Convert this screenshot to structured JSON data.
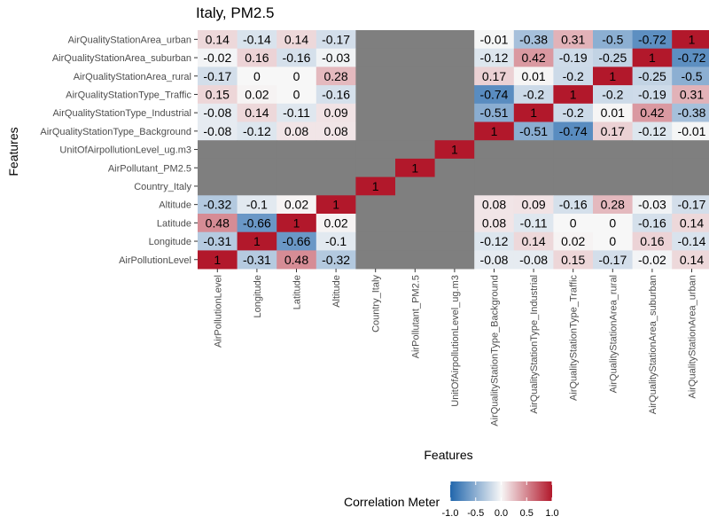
{
  "chart_data": {
    "type": "heatmap",
    "title": "Italy, PM2.5",
    "xlabel": "Features",
    "ylabel": "Features",
    "x_categories": [
      "AirPollutionLevel",
      "Longitude",
      "Latitude",
      "Altitude",
      "Country_Italy",
      "AirPollutant_PM2.5",
      "UnitOfAirpollutionLevel_ug.m3",
      "AirQualityStationType_Background",
      "AirQualityStationType_Industrial",
      "AirQualityStationType_Traffic",
      "AirQualityStationArea_rural",
      "AirQualityStationArea_suburban",
      "AirQualityStationArea_urban"
    ],
    "y_categories": [
      "AirQualityStationArea_urban",
      "AirQualityStationArea_suburban",
      "AirQualityStationArea_rural",
      "AirQualityStationType_Traffic",
      "AirQualityStationType_Industrial",
      "AirQualityStationType_Background",
      "UnitOfAirpollutionLevel_ug.m3",
      "AirPollutant_PM2.5",
      "Country_Italy",
      "Altitude",
      "Latitude",
      "Longitude",
      "AirPollutionLevel"
    ],
    "values": [
      [
        0.14,
        -0.14,
        0.14,
        -0.17,
        null,
        null,
        null,
        -0.01,
        -0.38,
        0.31,
        -0.5,
        -0.72,
        1
      ],
      [
        -0.02,
        0.16,
        -0.16,
        -0.03,
        null,
        null,
        null,
        -0.12,
        0.42,
        -0.19,
        -0.25,
        1,
        -0.72
      ],
      [
        -0.17,
        0,
        0,
        0.28,
        null,
        null,
        null,
        0.17,
        0.01,
        -0.2,
        1,
        -0.25,
        -0.5
      ],
      [
        0.15,
        0.02,
        0,
        -0.16,
        null,
        null,
        null,
        -0.74,
        -0.2,
        1,
        -0.2,
        -0.19,
        0.31
      ],
      [
        -0.08,
        0.14,
        -0.11,
        0.09,
        null,
        null,
        null,
        -0.51,
        1,
        -0.2,
        0.01,
        0.42,
        -0.38
      ],
      [
        -0.08,
        -0.12,
        0.08,
        0.08,
        null,
        null,
        null,
        1,
        -0.51,
        -0.74,
        0.17,
        -0.12,
        -0.01
      ],
      [
        null,
        null,
        null,
        null,
        null,
        null,
        1,
        null,
        null,
        null,
        null,
        null,
        null
      ],
      [
        null,
        null,
        null,
        null,
        null,
        1,
        null,
        null,
        null,
        null,
        null,
        null,
        null
      ],
      [
        null,
        null,
        null,
        null,
        1,
        null,
        null,
        null,
        null,
        null,
        null,
        null,
        null
      ],
      [
        -0.32,
        -0.1,
        0.02,
        1,
        null,
        null,
        null,
        0.08,
        0.09,
        -0.16,
        0.28,
        -0.03,
        -0.17
      ],
      [
        0.48,
        -0.66,
        1,
        0.02,
        null,
        null,
        null,
        0.08,
        -0.11,
        0,
        0,
        -0.16,
        0.14
      ],
      [
        -0.31,
        1,
        -0.66,
        -0.1,
        null,
        null,
        null,
        -0.12,
        0.14,
        0.02,
        0,
        0.16,
        -0.14
      ],
      [
        1,
        -0.31,
        0.48,
        -0.32,
        null,
        null,
        null,
        -0.08,
        -0.08,
        0.15,
        -0.17,
        -0.02,
        0.14
      ]
    ],
    "missing_color": "#7f7f7f",
    "legend": {
      "title": "Correlation Meter",
      "position": "bottom",
      "range": [
        -1,
        1
      ],
      "ticks": [
        "-1.0",
        "-0.5",
        "0.0",
        "0.5",
        "1.0"
      ],
      "colors": {
        "low": "#2166ac",
        "mid": "#f7f7f7",
        "high": "#b2182b"
      }
    },
    "grid": false
  }
}
